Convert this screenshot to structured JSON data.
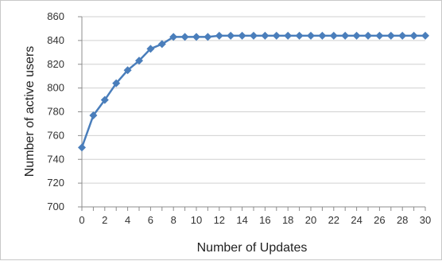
{
  "chart_data": {
    "type": "line",
    "title": "",
    "xlabel": "Number of Updates",
    "ylabel": "Number of active users",
    "xlim": [
      0,
      30
    ],
    "ylim": [
      700,
      860
    ],
    "x_ticks": [
      0,
      2,
      4,
      6,
      8,
      10,
      12,
      14,
      16,
      18,
      20,
      22,
      24,
      26,
      28,
      30
    ],
    "y_ticks": [
      700,
      720,
      740,
      760,
      780,
      800,
      820,
      840,
      860
    ],
    "grid": "horizontal",
    "legend": "none",
    "series": [
      {
        "color": "#4a7ebb",
        "marker": "diamond",
        "x": [
          0,
          1,
          2,
          3,
          4,
          5,
          6,
          7,
          8,
          9,
          10,
          11,
          12,
          13,
          14,
          15,
          16,
          17,
          18,
          19,
          20,
          21,
          22,
          23,
          24,
          25,
          26,
          27,
          28,
          29,
          30
        ],
        "y": [
          750,
          777,
          790,
          804,
          815,
          823,
          833,
          837,
          843,
          843,
          843,
          843,
          844,
          844,
          844,
          844,
          844,
          844,
          844,
          844,
          844,
          844,
          844,
          844,
          844,
          844,
          844,
          844,
          844,
          844,
          844
        ]
      }
    ]
  }
}
